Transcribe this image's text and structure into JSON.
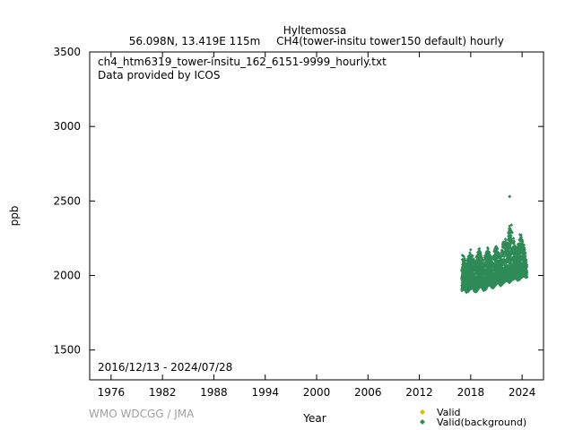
{
  "header": {
    "station": "Hyltemossa",
    "location": "56.098N, 13.419E 115m",
    "series_desc": "CH4(tower-insitu tower150 default) hourly"
  },
  "plot_notes": {
    "filename": "ch4_htm6319_tower-insitu_162_6151-9999_hourly.txt",
    "provider": "Data provided by ICOS",
    "date_range": "2016/12/13 - 2024/07/28"
  },
  "footer": {
    "credit": "WMO WDCGG / JMA"
  },
  "colors": {
    "valid": "#e6b800",
    "valid_background": "#2e8b57",
    "axis": "#000000",
    "credit": "#a0a0a0"
  },
  "chart_data": {
    "type": "scatter",
    "xlabel": "Year",
    "ylabel": "ppb",
    "xlim": [
      1973.5,
      2026.5
    ],
    "ylim": [
      1300,
      3500
    ],
    "xticks": [
      1976,
      1982,
      1988,
      1994,
      2000,
      2006,
      2012,
      2018,
      2024
    ],
    "yticks": [
      1500,
      2000,
      2500,
      3000,
      3500
    ],
    "grid": false,
    "legend_position": "bottom-right",
    "series": [
      {
        "name": "Valid",
        "marker": "diamond",
        "color": "#e6b800",
        "points": []
      },
      {
        "name": "Valid(background)",
        "marker": "diamond",
        "color": "#2e8b57",
        "range_start": 2016.95,
        "range_end": 2024.57,
        "outlier_points": [
          [
            2022.55,
            2530
          ]
        ],
        "envelope": [
          [
            2016.95,
            1905,
            2150
          ],
          [
            2017.0,
            1895,
            2160
          ],
          [
            2017.25,
            1915,
            2120
          ],
          [
            2017.5,
            1885,
            2080
          ],
          [
            2017.75,
            1895,
            2140
          ],
          [
            2018.0,
            1910,
            2175
          ],
          [
            2018.25,
            1915,
            2130
          ],
          [
            2018.5,
            1885,
            2090
          ],
          [
            2018.75,
            1895,
            2150
          ],
          [
            2019.0,
            1920,
            2185
          ],
          [
            2019.25,
            1925,
            2140
          ],
          [
            2019.5,
            1900,
            2100
          ],
          [
            2019.75,
            1905,
            2160
          ],
          [
            2020.0,
            1930,
            2190
          ],
          [
            2020.25,
            1935,
            2150
          ],
          [
            2020.5,
            1915,
            2100
          ],
          [
            2020.75,
            1920,
            2170
          ],
          [
            2021.0,
            1945,
            2200
          ],
          [
            2021.25,
            1950,
            2160
          ],
          [
            2021.5,
            1930,
            2120
          ],
          [
            2021.75,
            1945,
            2220
          ],
          [
            2022.0,
            1960,
            2250
          ],
          [
            2022.25,
            1965,
            2220
          ],
          [
            2022.5,
            1950,
            2330
          ],
          [
            2022.75,
            1965,
            2345
          ],
          [
            2023.0,
            1975,
            2250
          ],
          [
            2023.25,
            1980,
            2190
          ],
          [
            2023.5,
            1965,
            2200
          ],
          [
            2023.75,
            1975,
            2280
          ],
          [
            2024.0,
            1990,
            2270
          ],
          [
            2024.25,
            1995,
            2200
          ],
          [
            2024.57,
            1985,
            2080
          ]
        ]
      }
    ]
  }
}
